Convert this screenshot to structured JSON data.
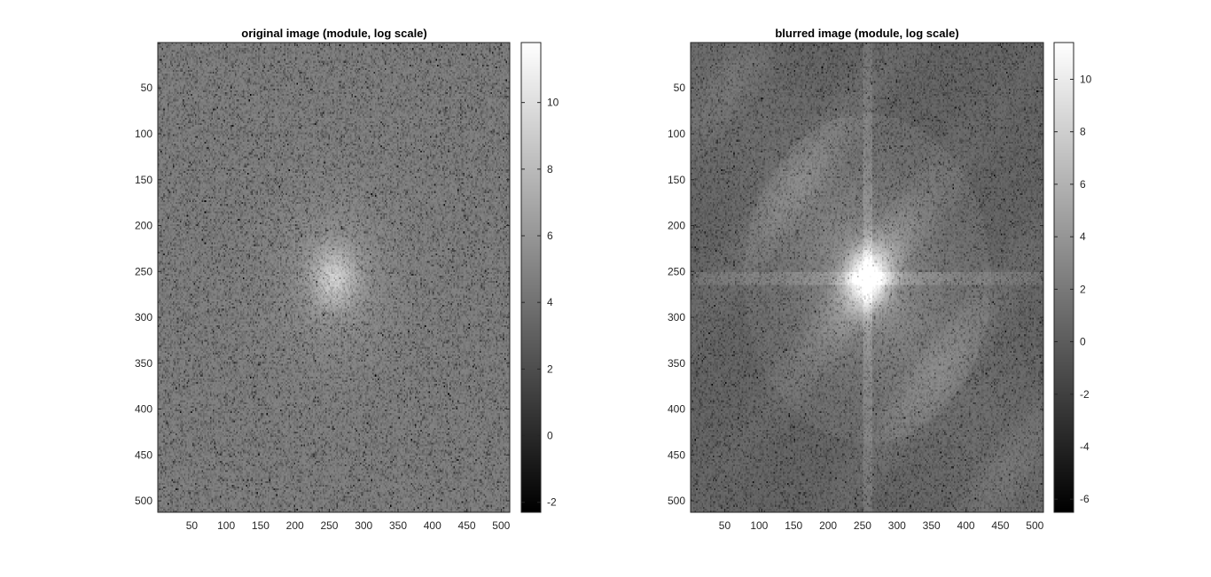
{
  "chart_data": [
    {
      "type": "heatmap",
      "title": "original image (module, log scale)",
      "xlabel": "",
      "ylabel": "",
      "xlim": [
        0.5,
        512.5
      ],
      "ylim": [
        0.5,
        512.5
      ],
      "y_reversed": true,
      "xticks": [
        50,
        100,
        150,
        200,
        250,
        300,
        350,
        400,
        450,
        500
      ],
      "yticks": [
        50,
        100,
        150,
        200,
        250,
        300,
        350,
        400,
        450,
        500
      ],
      "colormap": "gray",
      "color_range": [
        -2.3,
        11.8
      ],
      "colorbar_ticks": [
        -2,
        0,
        2,
        4,
        6,
        8,
        10
      ],
      "pattern": {
        "background_level": 4.5,
        "peak_level": 8.0,
        "peak_center": [
          256,
          256
        ],
        "diagonal_streaks": false,
        "cross_artifact": false
      }
    },
    {
      "type": "heatmap",
      "title": "blurred image (module, log scale)",
      "xlabel": "",
      "ylabel": "",
      "xlim": [
        0.5,
        512.5
      ],
      "ylim": [
        0.5,
        512.5
      ],
      "y_reversed": true,
      "xticks": [
        50,
        100,
        150,
        200,
        250,
        300,
        350,
        400,
        450,
        500
      ],
      "yticks": [
        50,
        100,
        150,
        200,
        250,
        300,
        350,
        400,
        450,
        500
      ],
      "colormap": "gray",
      "color_range": [
        -6.5,
        11.4
      ],
      "colorbar_ticks": [
        -6,
        -4,
        -2,
        0,
        2,
        4,
        6,
        8,
        10
      ],
      "pattern": {
        "background_level": 1.0,
        "peak_level": 9.0,
        "peak_center": [
          256,
          256
        ],
        "diagonal_streaks": true,
        "cross_artifact": true
      }
    }
  ]
}
